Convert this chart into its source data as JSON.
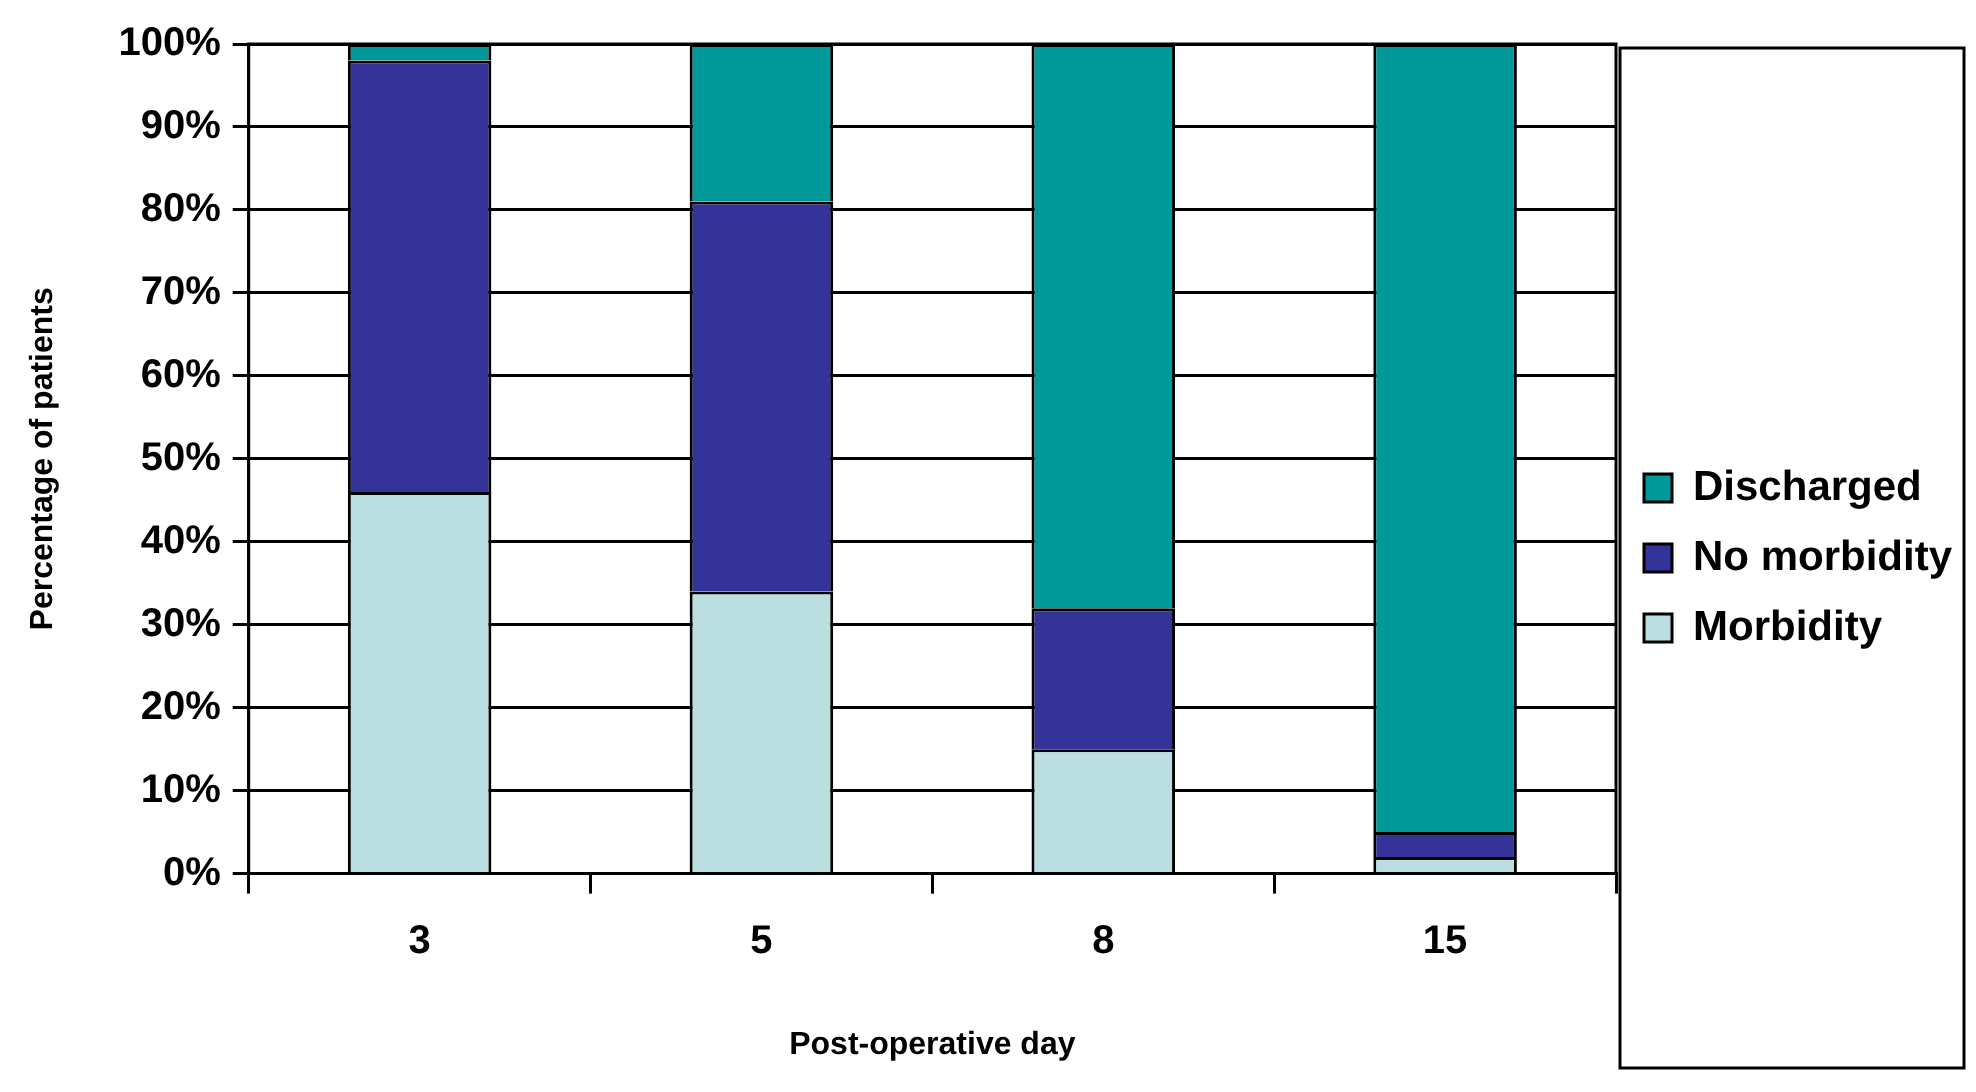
{
  "chart_data": {
    "type": "bar",
    "stacked": true,
    "xlabel": "Post-operative day",
    "ylabel": "Percentage of patients",
    "categories": [
      "3",
      "5",
      "8",
      "15"
    ],
    "series": [
      {
        "name": "Morbidity",
        "color": "#bbdfe1",
        "values": [
          46,
          34,
          15,
          2
        ]
      },
      {
        "name": "No morbidity",
        "color": "#333399",
        "values": [
          52,
          47,
          17,
          3
        ]
      },
      {
        "name": "Discharged",
        "color": "#009999",
        "values": [
          2,
          19,
          68,
          95
        ]
      }
    ],
    "ylim": [
      0,
      100
    ],
    "yticks": [
      {
        "value": 0,
        "label": "0%"
      },
      {
        "value": 10,
        "label": "10%"
      },
      {
        "value": 20,
        "label": "20%"
      },
      {
        "value": 30,
        "label": "30%"
      },
      {
        "value": 40,
        "label": "40%"
      },
      {
        "value": 50,
        "label": "50%"
      },
      {
        "value": 60,
        "label": "60%"
      },
      {
        "value": 70,
        "label": "70%"
      },
      {
        "value": 80,
        "label": "80%"
      },
      {
        "value": 90,
        "label": "90%"
      },
      {
        "value": 100,
        "label": "100%"
      }
    ],
    "grid": "y",
    "legend": "right"
  }
}
